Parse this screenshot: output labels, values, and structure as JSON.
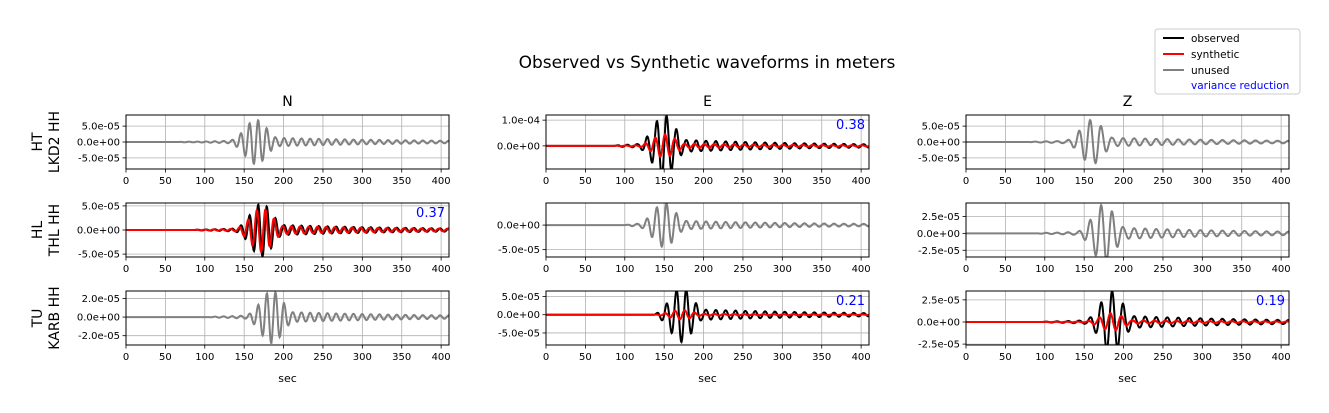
{
  "title": "Observed vs Synthetic waveforms in meters",
  "legend": {
    "observed_label": "observed",
    "synthetic_label": "synthetic",
    "unused_label": "unused",
    "vr_label": "variance reduction"
  },
  "colors": {
    "observed": "#000000",
    "synthetic": "#ff0000",
    "unused": "#808080",
    "variance_reduction": "#0000ff",
    "grid": "#b0b0b0"
  },
  "columns": [
    "N",
    "E",
    "Z"
  ],
  "stations": [
    "HT\nLKD2 HH",
    "HL\nTHL HH",
    "TU\nKARB HH"
  ],
  "xlabel": "sec",
  "chart_data": {
    "type": "line",
    "xlim": [
      0,
      410
    ],
    "xticks": [
      0,
      50,
      100,
      150,
      200,
      250,
      300,
      350,
      400
    ],
    "panels": [
      {
        "row": 0,
        "col": 0,
        "ylim": [
          -8.5e-05,
          8.5e-05
        ],
        "yticks": [
          5e-05,
          0,
          -5e-05
        ],
        "ytick_labels": [
          "5.0e-05",
          "0.0e+00",
          "-5.0e-05"
        ],
        "used": false,
        "variance_reduction": null,
        "obs_amp": 7e-05,
        "syn_amp": 0,
        "center": 165,
        "start": 65,
        "end": 410
      },
      {
        "row": 0,
        "col": 1,
        "ylim": [
          -9e-05,
          0.00012
        ],
        "yticks": [
          0.0001,
          0
        ],
        "ytick_labels": [
          "1.0e-04",
          "0.0e+00"
        ],
        "used": true,
        "variance_reduction": "0.38",
        "obs_amp": 0.00012,
        "syn_amp": 4.5e-05,
        "center": 150,
        "start": 85,
        "end": 410
      },
      {
        "row": 0,
        "col": 2,
        "ylim": [
          -8.5e-05,
          8.5e-05
        ],
        "yticks": [
          5e-05,
          0,
          -5e-05
        ],
        "ytick_labels": [
          "5.0e-05",
          "0.0e+00",
          "-5.0e-05"
        ],
        "used": false,
        "variance_reduction": null,
        "obs_amp": 7e-05,
        "syn_amp": 0,
        "center": 160,
        "start": 80,
        "end": 410
      },
      {
        "row": 1,
        "col": 0,
        "ylim": [
          -5.6e-05,
          5.6e-05
        ],
        "yticks": [
          5e-05,
          0,
          -5e-05
        ],
        "ytick_labels": [
          "5.0e-05",
          "0.0e+00",
          "-5.0e-05"
        ],
        "used": true,
        "variance_reduction": "0.37",
        "obs_amp": 5.5e-05,
        "syn_amp": 4.5e-05,
        "center": 172,
        "start": 85,
        "end": 410
      },
      {
        "row": 1,
        "col": 1,
        "ylim": [
          -6.5e-05,
          4.5e-05
        ],
        "yticks": [
          0,
          -5e-05
        ],
        "ytick_labels": [
          "0.0e+00",
          "-5.0e-05"
        ],
        "used": false,
        "variance_reduction": null,
        "obs_amp": 4.5e-05,
        "syn_amp": 0,
        "center": 150,
        "start": 100,
        "end": 410
      },
      {
        "row": 1,
        "col": 2,
        "ylim": [
          -3.5e-05,
          4.5e-05
        ],
        "yticks": [
          2.5e-05,
          0,
          -2.5e-05
        ],
        "ytick_labels": [
          "2.5e-05",
          "0.0e+00",
          "-2.5e-05"
        ],
        "used": false,
        "variance_reduction": null,
        "obs_amp": 4.3e-05,
        "syn_amp": 0,
        "center": 175,
        "start": 90,
        "end": 410
      },
      {
        "row": 2,
        "col": 0,
        "ylim": [
          -3e-05,
          2.8e-05
        ],
        "yticks": [
          2e-05,
          0,
          -2e-05
        ],
        "ytick_labels": [
          "2.0e-05",
          "0.0e+00",
          "-2.0e-05"
        ],
        "used": false,
        "variance_reduction": null,
        "obs_amp": 2.8e-05,
        "syn_amp": 0,
        "center": 185,
        "start": 105,
        "end": 410
      },
      {
        "row": 2,
        "col": 1,
        "ylim": [
          -8.3e-05,
          6.5e-05
        ],
        "yticks": [
          5e-05,
          0,
          -5e-05
        ],
        "ytick_labels": [
          "5.0e-05",
          "0.0e+00",
          "-5.0e-05"
        ],
        "used": true,
        "variance_reduction": "0.21",
        "obs_amp": 7.5e-05,
        "syn_amp": 1.3e-05,
        "center": 172,
        "start": 135,
        "end": 410
      },
      {
        "row": 2,
        "col": 2,
        "ylim": [
          -2.6e-05,
          3.5e-05
        ],
        "yticks": [
          2.5e-05,
          0,
          -2.5e-05
        ],
        "ytick_labels": [
          "2.5e-05",
          "0.0e+00",
          "-2.5e-05"
        ],
        "used": true,
        "variance_reduction": "0.19",
        "obs_amp": 3.5e-05,
        "syn_amp": 1e-05,
        "center": 185,
        "start": 95,
        "end": 410
      }
    ]
  }
}
